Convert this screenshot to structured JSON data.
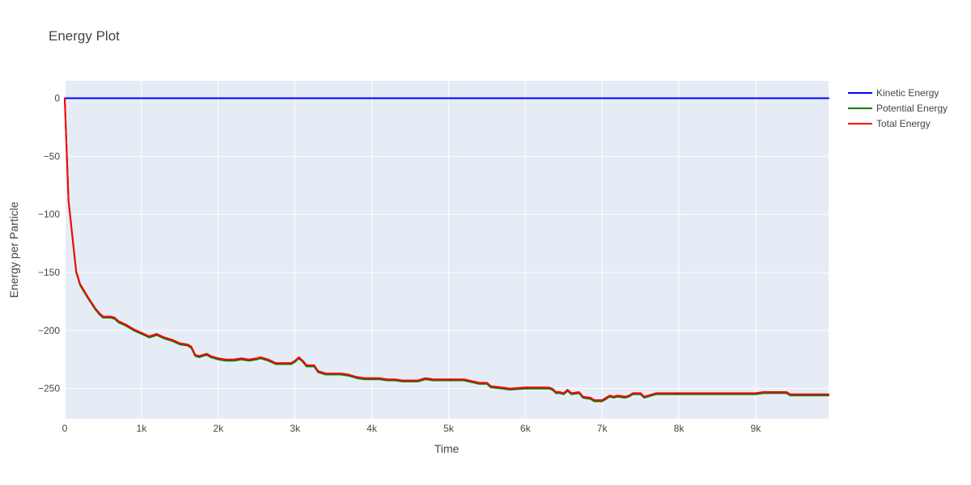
{
  "chart_data": {
    "type": "line",
    "title": "Energy Plot",
    "xlabel": "Time",
    "ylabel": "Energy per Particle",
    "xlim": [
      0,
      9950
    ],
    "ylim": [
      -276,
      15
    ],
    "x_ticks": [
      0,
      1000,
      2000,
      3000,
      4000,
      5000,
      6000,
      7000,
      8000,
      9000
    ],
    "x_tick_labels": [
      "0",
      "1k",
      "2k",
      "3k",
      "4k",
      "5k",
      "6k",
      "7k",
      "8k",
      "9k"
    ],
    "y_ticks": [
      0,
      -50,
      -100,
      -150,
      -200,
      -250
    ],
    "y_tick_labels": [
      "0",
      "−50",
      "−100",
      "−150",
      "−200",
      "−250"
    ],
    "grid": true,
    "legend_position": "top-right, outside plot",
    "plot_background": "#e5ecf6",
    "series": [
      {
        "name": "Kinetic Energy",
        "color": "#0000ff",
        "points": [
          [
            0,
            0
          ],
          [
            9950,
            0
          ]
        ]
      },
      {
        "name": "Potential Energy",
        "color": "#008000",
        "points": [
          [
            0,
            -1
          ],
          [
            50,
            -88
          ],
          [
            100,
            -120
          ],
          [
            150,
            -150
          ],
          [
            200,
            -161
          ],
          [
            300,
            -172
          ],
          [
            400,
            -182
          ],
          [
            450,
            -186
          ],
          [
            500,
            -189
          ],
          [
            600,
            -189
          ],
          [
            650,
            -190
          ],
          [
            700,
            -193
          ],
          [
            800,
            -196
          ],
          [
            900,
            -200
          ],
          [
            1000,
            -203
          ],
          [
            1100,
            -206
          ],
          [
            1200,
            -204
          ],
          [
            1300,
            -207
          ],
          [
            1400,
            -209
          ],
          [
            1500,
            -212
          ],
          [
            1600,
            -213
          ],
          [
            1650,
            -215
          ],
          [
            1700,
            -222
          ],
          [
            1750,
            -223
          ],
          [
            1850,
            -221
          ],
          [
            1900,
            -223
          ],
          [
            2000,
            -225
          ],
          [
            2100,
            -226
          ],
          [
            2200,
            -226
          ],
          [
            2300,
            -225
          ],
          [
            2400,
            -226
          ],
          [
            2500,
            -225
          ],
          [
            2550,
            -224
          ],
          [
            2650,
            -226
          ],
          [
            2750,
            -229
          ],
          [
            2850,
            -229
          ],
          [
            2950,
            -229
          ],
          [
            3000,
            -227
          ],
          [
            3050,
            -224
          ],
          [
            3100,
            -227
          ],
          [
            3150,
            -231
          ],
          [
            3250,
            -231
          ],
          [
            3300,
            -236
          ],
          [
            3400,
            -238
          ],
          [
            3500,
            -238
          ],
          [
            3600,
            -238
          ],
          [
            3700,
            -239
          ],
          [
            3800,
            -241
          ],
          [
            3900,
            -242
          ],
          [
            4000,
            -242
          ],
          [
            4100,
            -242
          ],
          [
            4200,
            -243
          ],
          [
            4300,
            -243
          ],
          [
            4400,
            -244
          ],
          [
            4600,
            -244
          ],
          [
            4700,
            -242
          ],
          [
            4800,
            -243
          ],
          [
            5000,
            -243
          ],
          [
            5200,
            -243
          ],
          [
            5400,
            -246
          ],
          [
            5500,
            -246
          ],
          [
            5550,
            -249
          ],
          [
            5700,
            -250
          ],
          [
            5800,
            -251
          ],
          [
            6000,
            -250
          ],
          [
            6200,
            -250
          ],
          [
            6300,
            -250
          ],
          [
            6350,
            -251
          ],
          [
            6400,
            -254
          ],
          [
            6450,
            -254
          ],
          [
            6500,
            -255
          ],
          [
            6550,
            -252
          ],
          [
            6600,
            -255
          ],
          [
            6700,
            -254
          ],
          [
            6750,
            -258
          ],
          [
            6850,
            -259
          ],
          [
            6900,
            -261
          ],
          [
            7000,
            -261
          ],
          [
            7050,
            -259
          ],
          [
            7100,
            -257
          ],
          [
            7150,
            -258
          ],
          [
            7200,
            -257
          ],
          [
            7300,
            -258
          ],
          [
            7350,
            -257
          ],
          [
            7400,
            -255
          ],
          [
            7500,
            -255
          ],
          [
            7550,
            -258
          ],
          [
            7600,
            -257
          ],
          [
            7700,
            -255
          ],
          [
            7800,
            -255
          ],
          [
            8000,
            -255
          ],
          [
            8500,
            -255
          ],
          [
            9000,
            -255
          ],
          [
            9100,
            -254
          ],
          [
            9350,
            -254
          ],
          [
            9400,
            -254
          ],
          [
            9450,
            -256
          ],
          [
            9600,
            -256
          ],
          [
            9950,
            -256
          ]
        ]
      },
      {
        "name": "Total Energy",
        "color": "#ff0000",
        "points": [
          [
            0,
            0
          ],
          [
            50,
            -88
          ],
          [
            100,
            -119
          ],
          [
            150,
            -149
          ],
          [
            200,
            -160
          ],
          [
            300,
            -171
          ],
          [
            400,
            -181
          ],
          [
            450,
            -185
          ],
          [
            500,
            -188
          ],
          [
            600,
            -188
          ],
          [
            650,
            -189
          ],
          [
            700,
            -192
          ],
          [
            800,
            -195
          ],
          [
            900,
            -199
          ],
          [
            1000,
            -202
          ],
          [
            1100,
            -205
          ],
          [
            1200,
            -203
          ],
          [
            1300,
            -206
          ],
          [
            1400,
            -208
          ],
          [
            1500,
            -211
          ],
          [
            1600,
            -212
          ],
          [
            1650,
            -214
          ],
          [
            1700,
            -221
          ],
          [
            1750,
            -222
          ],
          [
            1850,
            -220
          ],
          [
            1900,
            -222
          ],
          [
            2000,
            -224
          ],
          [
            2100,
            -225
          ],
          [
            2200,
            -225
          ],
          [
            2300,
            -224
          ],
          [
            2400,
            -225
          ],
          [
            2500,
            -224
          ],
          [
            2550,
            -223
          ],
          [
            2650,
            -225
          ],
          [
            2750,
            -228
          ],
          [
            2850,
            -228
          ],
          [
            2950,
            -228
          ],
          [
            3000,
            -226
          ],
          [
            3050,
            -223
          ],
          [
            3100,
            -226
          ],
          [
            3150,
            -230
          ],
          [
            3250,
            -230
          ],
          [
            3300,
            -235
          ],
          [
            3400,
            -237
          ],
          [
            3500,
            -237
          ],
          [
            3600,
            -237
          ],
          [
            3700,
            -238
          ],
          [
            3800,
            -240
          ],
          [
            3900,
            -241
          ],
          [
            4000,
            -241
          ],
          [
            4100,
            -241
          ],
          [
            4200,
            -242
          ],
          [
            4300,
            -242
          ],
          [
            4400,
            -243
          ],
          [
            4600,
            -243
          ],
          [
            4700,
            -241
          ],
          [
            4800,
            -242
          ],
          [
            5000,
            -242
          ],
          [
            5200,
            -242
          ],
          [
            5400,
            -245
          ],
          [
            5500,
            -245
          ],
          [
            5550,
            -248
          ],
          [
            5700,
            -249
          ],
          [
            5800,
            -250
          ],
          [
            6000,
            -249
          ],
          [
            6200,
            -249
          ],
          [
            6300,
            -249
          ],
          [
            6350,
            -250
          ],
          [
            6400,
            -253
          ],
          [
            6450,
            -253
          ],
          [
            6500,
            -254
          ],
          [
            6550,
            -251
          ],
          [
            6600,
            -254
          ],
          [
            6700,
            -253
          ],
          [
            6750,
            -257
          ],
          [
            6850,
            -258
          ],
          [
            6900,
            -260
          ],
          [
            7000,
            -260
          ],
          [
            7050,
            -258
          ],
          [
            7100,
            -256
          ],
          [
            7150,
            -257
          ],
          [
            7200,
            -256
          ],
          [
            7300,
            -257
          ],
          [
            7350,
            -256
          ],
          [
            7400,
            -254
          ],
          [
            7500,
            -254
          ],
          [
            7550,
            -257
          ],
          [
            7600,
            -256
          ],
          [
            7700,
            -254
          ],
          [
            7800,
            -254
          ],
          [
            8000,
            -254
          ],
          [
            8500,
            -254
          ],
          [
            9000,
            -254
          ],
          [
            9100,
            -253
          ],
          [
            9350,
            -253
          ],
          [
            9400,
            -253
          ],
          [
            9450,
            -255
          ],
          [
            9600,
            -255
          ],
          [
            9950,
            -255
          ]
        ]
      }
    ]
  }
}
